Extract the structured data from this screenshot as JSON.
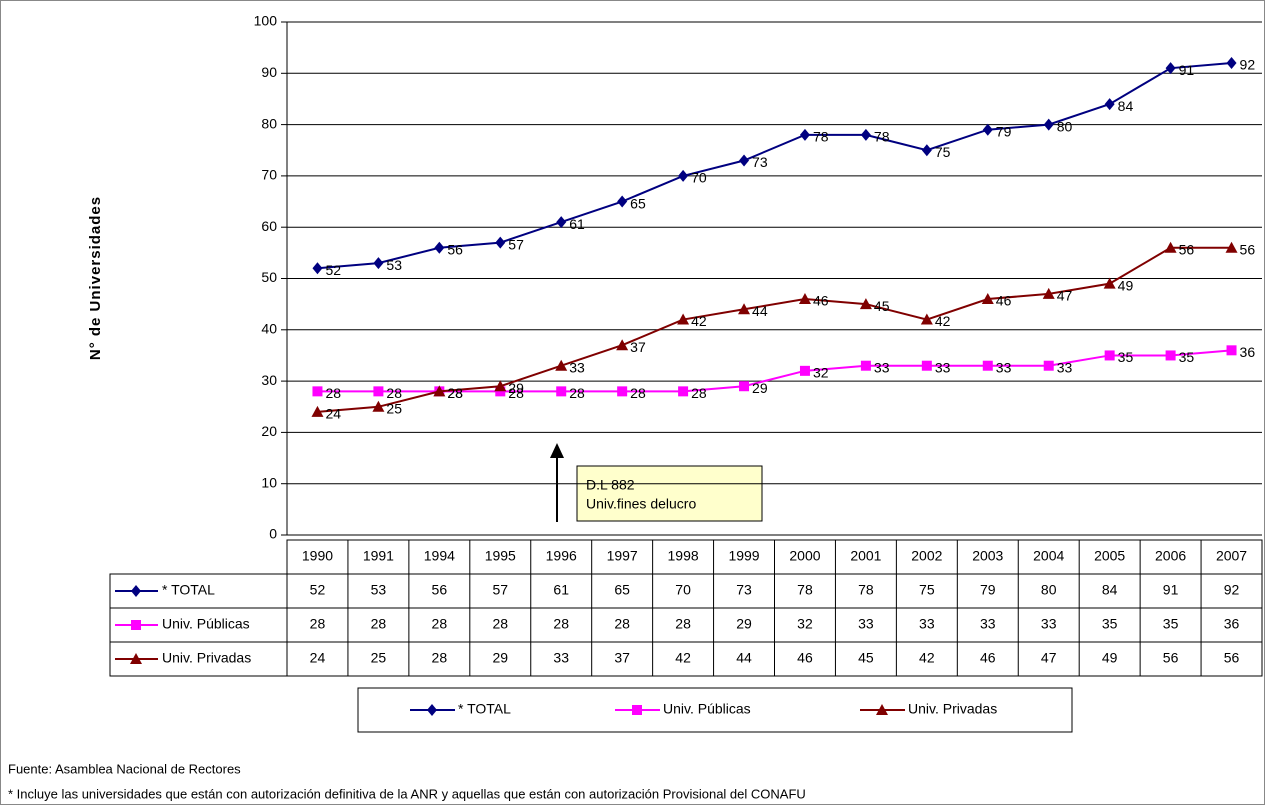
{
  "chart_data": {
    "type": "line",
    "ylabel": "N° de Universidades",
    "categories": [
      "1990",
      "1991",
      "1994",
      "1995",
      "1996",
      "1997",
      "1998",
      "1999",
      "2000",
      "2001",
      "2002",
      "2003",
      "2004",
      "2005",
      "2006",
      "2007"
    ],
    "series": [
      {
        "name": "* TOTAL",
        "color": "#000080",
        "marker": "diamond",
        "values": [
          52,
          53,
          56,
          57,
          61,
          65,
          70,
          73,
          78,
          78,
          75,
          79,
          80,
          84,
          91,
          92
        ]
      },
      {
        "name": "Univ. Públicas",
        "color": "#ff00ff",
        "marker": "square",
        "values": [
          28,
          28,
          28,
          28,
          28,
          28,
          28,
          29,
          32,
          33,
          33,
          33,
          33,
          35,
          35,
          36
        ]
      },
      {
        "name": "Univ. Privadas",
        "color": "#800000",
        "marker": "triangle",
        "values": [
          24,
          25,
          28,
          29,
          33,
          37,
          42,
          44,
          46,
          45,
          42,
          46,
          47,
          49,
          56,
          56
        ]
      }
    ],
    "ylim": [
      0,
      100
    ],
    "yticks": [
      0,
      10,
      20,
      30,
      40,
      50,
      60,
      70,
      80,
      90,
      100
    ],
    "grid": true,
    "annotation": [
      "D.L 882",
      "Univ.fines delucro"
    ],
    "source": "Fuente: Asamblea Nacional de Rectores",
    "note": "* Incluye las universidades que están con autorización definitiva de la ANR y aquellas que están con autorización Provisional del CONAFU"
  }
}
